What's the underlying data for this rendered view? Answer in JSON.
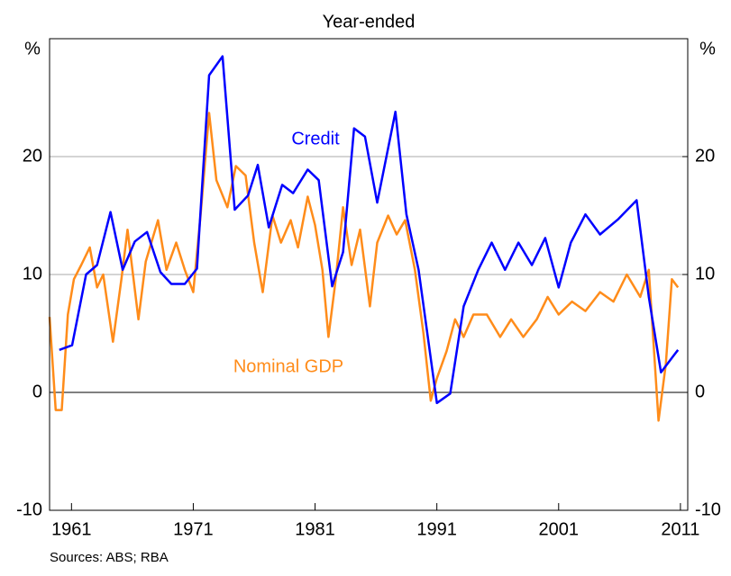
{
  "chart_data": {
    "type": "line",
    "title": "Year-ended",
    "y_label": "%",
    "y2_label": "%",
    "source": "Sources: ABS; RBA",
    "xlim": [
      1959.2,
      2011.6
    ],
    "xticks": [
      1961,
      1971,
      1981,
      1991,
      2001,
      2011
    ],
    "ylim": [
      -10,
      30
    ],
    "yticks": [
      -10,
      0,
      10,
      20
    ],
    "y2lim": [
      -10,
      30
    ],
    "y2ticks": [
      -10,
      0,
      10,
      20
    ],
    "grid": true,
    "series": [
      {
        "name": "Credit",
        "color": "#0000ff",
        "x": [
          1960.0,
          1961.05,
          1962.2,
          1963.1,
          1964.2,
          1965.2,
          1966.2,
          1967.2,
          1968.3,
          1969.2,
          1970.3,
          1971.3,
          1972.3,
          1973.4,
          1974.4,
          1975.5,
          1976.3,
          1977.2,
          1978.3,
          1979.2,
          1980.4,
          1981.3,
          1982.4,
          1983.3,
          1984.2,
          1985.1,
          1986.1,
          1987.6,
          1988.5,
          1989.5,
          1991.0,
          1992.1,
          1993.2,
          1994.4,
          1995.5,
          1996.6,
          1997.7,
          1998.8,
          1999.9,
          2001.0,
          2002.0,
          2003.2,
          2004.4,
          2005.9,
          2007.4,
          2008.4,
          2009.4,
          2010.5,
          2010.8
        ],
        "values": [
          3.6,
          4.0,
          10,
          10.8,
          15.3,
          10.4,
          12.8,
          13.6,
          10.2,
          9.2,
          9.2,
          10.5,
          26.9,
          28.5,
          15.5,
          16.7,
          19.3,
          14,
          17.6,
          16.9,
          18.9,
          18,
          9,
          11.9,
          22.4,
          21.7,
          16.1,
          23.8,
          15.1,
          10.4,
          -0.9,
          -0.1,
          7.3,
          10.4,
          12.7,
          10.4,
          12.7,
          10.8,
          13.1,
          8.9,
          12.7,
          15.1,
          13.4,
          14.7,
          16.3,
          8.1,
          1.7,
          3.2,
          3.6
        ]
      },
      {
        "name": "Nominal GDP",
        "color": "#ff8c1a",
        "x": [
          1959.2,
          1959.7,
          1960.2,
          1960.7,
          1961.2,
          1961.8,
          1962.5,
          1963.1,
          1963.6,
          1964.4,
          1965.1,
          1965.6,
          1966.5,
          1967.1,
          1968.1,
          1968.8,
          1969.6,
          1970.3,
          1971.0,
          1971.6,
          1972.3,
          1972.9,
          1973.8,
          1974.5,
          1975.3,
          1976.0,
          1976.7,
          1977.5,
          1978.2,
          1979.0,
          1979.6,
          1980.4,
          1981.0,
          1981.6,
          1982.1,
          1982.7,
          1983.3,
          1984.0,
          1984.7,
          1985.5,
          1986.1,
          1987.0,
          1987.7,
          1988.4,
          1989.2,
          1989.9,
          1990.5,
          1991.0,
          1991.8,
          1992.5,
          1993.2,
          1994.0,
          1995.1,
          1996.2,
          1997.1,
          1998.1,
          1999.2,
          2000.1,
          2001.0,
          2002.1,
          2003.2,
          2004.4,
          2005.5,
          2006.6,
          2007.7,
          2008.4,
          2009.2,
          2009.8,
          2010.3,
          2010.8
        ],
        "values": [
          6.4,
          -1.5,
          -1.5,
          6.6,
          9.6,
          10.8,
          12.3,
          8.9,
          10,
          4.3,
          9.6,
          13.8,
          6.2,
          11.1,
          14.6,
          10.4,
          12.7,
          10.4,
          8.5,
          15,
          23.7,
          18,
          15.7,
          19.2,
          18.4,
          12.7,
          8.5,
          15,
          12.7,
          14.6,
          12.3,
          16.6,
          14.2,
          10.4,
          4.7,
          9.6,
          15.7,
          10.8,
          13.8,
          7.3,
          12.7,
          15,
          13.4,
          14.6,
          10.4,
          5,
          -0.7,
          1.2,
          3.5,
          6.2,
          4.7,
          6.6,
          6.6,
          4.7,
          6.2,
          4.7,
          6.2,
          8.1,
          6.6,
          7.7,
          6.9,
          8.5,
          7.7,
          10,
          8.1,
          10.4,
          -2.4,
          2.4,
          9.6,
          8.9
        ]
      }
    ]
  }
}
